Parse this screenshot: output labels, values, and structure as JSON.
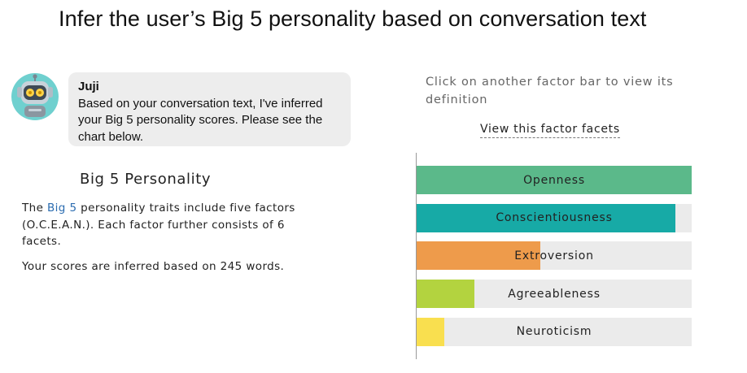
{
  "header": {
    "title": "Infer the user’s Big 5 personality based on conversation text"
  },
  "chat": {
    "avatar_icon": "robot-icon",
    "sender": "Juji",
    "message": "Based on your conversation text, I've inferred your Big 5 personality scores. Please see the chart below."
  },
  "panel": {
    "heading": "Big 5 Personality",
    "desc_prefix": "The ",
    "desc_link": "Big 5",
    "desc_suffix": " personality traits include five factors (O.C.E.A.N.). Each factor further consists of 6 facets.",
    "words_text": "Your scores are inferred based on 245 words."
  },
  "chart_controls": {
    "hint": "Click on another factor bar to view its definition",
    "facets_link": "View this factor facets"
  },
  "colors": {
    "openness": "#5bb98a",
    "conscientiousness": "#17aaa6",
    "extroversion": "#ee9b4b",
    "agreeableness": "#b3d33f",
    "neuroticism": "#f9df4f",
    "track": "#ebebeb"
  },
  "chart_data": {
    "type": "bar",
    "orientation": "horizontal",
    "categories": [
      "Openness",
      "Conscientiousness",
      "Extroversion",
      "Agreeableness",
      "Neuroticism"
    ],
    "values": [
      1.0,
      0.94,
      0.45,
      0.21,
      0.1
    ],
    "xlim": [
      0,
      1
    ],
    "grid": false
  }
}
